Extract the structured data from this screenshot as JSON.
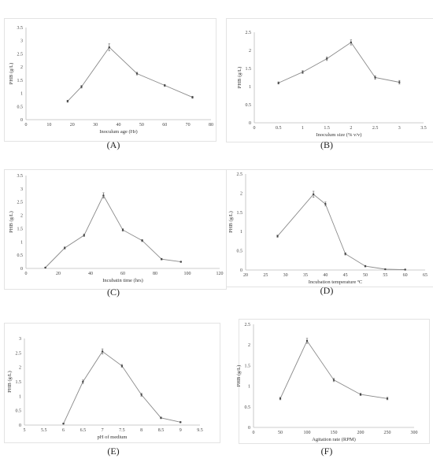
{
  "chart_data": [
    {
      "type": "line",
      "panel_label": "(A)",
      "xlabel": "Inoculum age (Hr)",
      "ylabel": "PHB (g/L)",
      "xlim": [
        0,
        80
      ],
      "ylim": [
        0,
        3.5
      ],
      "x_ticks": [
        "0",
        "10",
        "20",
        "30",
        "40",
        "50",
        "60",
        "70",
        "80"
      ],
      "y_ticks": [
        "0",
        "0.5",
        "1",
        "1.5",
        "2",
        "2.5",
        "3",
        "3.5"
      ],
      "series": [
        {
          "x": [
            18,
            24,
            36,
            48,
            60,
            72
          ],
          "y": [
            0.7,
            1.25,
            2.75,
            1.75,
            1.3,
            0.85
          ],
          "error": [
            0.04,
            0.05,
            0.13,
            0.05,
            0.04,
            0.04
          ]
        }
      ]
    },
    {
      "type": "line",
      "panel_label": "(B)",
      "xlabel": "Inoculum size  (% v/v)",
      "ylabel": "PHB (g/L)",
      "xlim": [
        0,
        3.5
      ],
      "ylim": [
        0,
        2.5
      ],
      "x_ticks": [
        "0",
        "0.5",
        "1",
        "1.5",
        "2",
        "2.5",
        "3",
        "3.5"
      ],
      "y_ticks": [
        "0",
        "0.5",
        "1",
        "1.5",
        "2",
        "2.5"
      ],
      "series": [
        {
          "x": [
            0.5,
            1,
            1.5,
            2,
            2.5,
            3
          ],
          "y": [
            1.1,
            1.4,
            1.77,
            2.22,
            1.25,
            1.12
          ],
          "error": [
            0.03,
            0.04,
            0.05,
            0.07,
            0.05,
            0.05
          ]
        }
      ]
    },
    {
      "type": "line",
      "panel_label": "(C)",
      "xlabel": "Incubatin time (hrs)",
      "ylabel": "PHB (g/L)",
      "xlim": [
        0,
        120
      ],
      "ylim": [
        0,
        3.5
      ],
      "x_ticks": [
        "0",
        "20",
        "40",
        "60",
        "80",
        "100",
        "120"
      ],
      "y_ticks": [
        "0",
        "0.5",
        "1",
        "1.5",
        "2",
        "2.5",
        "3",
        "3.5"
      ],
      "series": [
        {
          "x": [
            12,
            24,
            36,
            48,
            60,
            72,
            84,
            96
          ],
          "y": [
            0.03,
            0.77,
            1.25,
            2.75,
            1.45,
            1.05,
            0.35,
            0.25
          ],
          "error": [
            0.02,
            0.04,
            0.05,
            0.1,
            0.05,
            0.04,
            0.03,
            0.02
          ]
        }
      ]
    },
    {
      "type": "line",
      "panel_label": "(D)",
      "xlabel": "Incubation temperature ºC",
      "ylabel": "PHB (g/L)",
      "xlim": [
        20,
        65
      ],
      "ylim": [
        0,
        2.5
      ],
      "x_ticks": [
        "20",
        "25",
        "30",
        "35",
        "40",
        "45",
        "50",
        "55",
        "60",
        "65"
      ],
      "y_ticks": [
        "0",
        "0.5",
        "1",
        "1.5",
        "2",
        "2.5"
      ],
      "series": [
        {
          "x": [
            28,
            37,
            40,
            45,
            50,
            55,
            60
          ],
          "y": [
            0.88,
            1.97,
            1.72,
            0.42,
            0.1,
            0.02,
            0.01
          ],
          "error": [
            0.03,
            0.08,
            0.05,
            0.03,
            0.02,
            0.01,
            0.01
          ]
        }
      ]
    },
    {
      "type": "line",
      "panel_label": "(E)",
      "xlabel": "pH of medium",
      "ylabel": "PHB (g/L)",
      "xlim": [
        5,
        9.5
      ],
      "ylim": [
        0,
        3
      ],
      "x_ticks": [
        "5",
        "5.5",
        "6",
        "6.5",
        "7",
        "7.5",
        "8",
        "8.5",
        "9",
        "9.5"
      ],
      "y_ticks": [
        "0",
        "0.5",
        "1",
        "1.5",
        "2",
        "2.5",
        "3"
      ],
      "series": [
        {
          "x": [
            6,
            6.5,
            7,
            7.5,
            8,
            8.5,
            9
          ],
          "y": [
            0.05,
            1.5,
            2.55,
            2.05,
            1.05,
            0.25,
            0.1
          ],
          "error": [
            0.02,
            0.06,
            0.09,
            0.05,
            0.05,
            0.03,
            0.02
          ]
        }
      ]
    },
    {
      "type": "line",
      "panel_label": "(F)",
      "xlabel": "Agitation rate (RPM)",
      "ylabel": "PHB (g/L)",
      "xlim": [
        0,
        300
      ],
      "ylim": [
        0,
        2.5
      ],
      "x_ticks": [
        "0",
        "50",
        "100",
        "150",
        "200",
        "250",
        "300"
      ],
      "y_ticks": [
        "0",
        "0.5",
        "1",
        "1.5",
        "2",
        "2.5"
      ],
      "series": [
        {
          "x": [
            50,
            100,
            150,
            200,
            250
          ],
          "y": [
            0.7,
            2.1,
            1.15,
            0.8,
            0.7
          ],
          "error": [
            0.03,
            0.06,
            0.04,
            0.03,
            0.03
          ]
        }
      ]
    }
  ]
}
